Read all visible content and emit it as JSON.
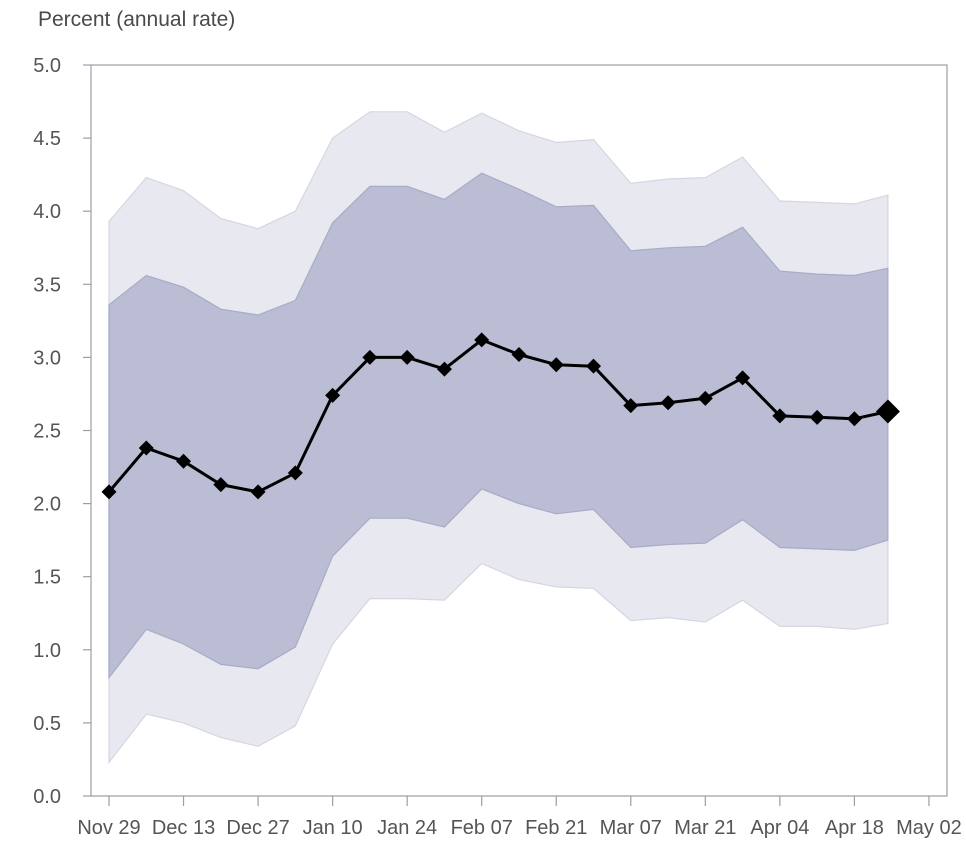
{
  "chart_data": {
    "type": "line",
    "title": "",
    "ylabel": "Percent (annual rate)",
    "xlabel": "",
    "ylim": [
      0.0,
      5.0
    ],
    "yticks": [
      "0.0",
      "0.5",
      "1.0",
      "1.5",
      "2.0",
      "2.5",
      "3.0",
      "3.5",
      "4.0",
      "4.5",
      "5.0"
    ],
    "xticks": [
      "Nov 29",
      "Dec 13",
      "Dec 27",
      "Jan 10",
      "Jan 24",
      "Feb 07",
      "Feb 21",
      "Mar 07",
      "Mar 21",
      "Apr 04",
      "Apr 18",
      "May 02"
    ],
    "x": [
      "Nov 29",
      "Dec 06",
      "Dec 13",
      "Dec 20",
      "Dec 27",
      "Jan 03",
      "Jan 10",
      "Jan 17",
      "Jan 24",
      "Jan 31",
      "Feb 07",
      "Feb 14",
      "Feb 21",
      "Feb 28",
      "Mar 07",
      "Mar 14",
      "Mar 21",
      "Mar 28",
      "Apr 04",
      "Apr 11",
      "Apr 18",
      "Apr 24"
    ],
    "series": [
      {
        "values": [
          2.08,
          2.38,
          2.29,
          2.13,
          2.08,
          2.21,
          2.74,
          3.0,
          3.0,
          2.92,
          3.12,
          3.02,
          2.95,
          2.94,
          2.67,
          2.69,
          2.72,
          2.86,
          2.6,
          2.59,
          2.58,
          2.63
        ]
      }
    ],
    "bands": [
      {
        "lower": [
          0.23,
          0.56,
          0.5,
          0.4,
          0.34,
          0.48,
          1.04,
          1.35,
          1.35,
          1.34,
          1.59,
          1.48,
          1.43,
          1.42,
          1.2,
          1.22,
          1.19,
          1.34,
          1.16,
          1.16,
          1.14,
          1.18
        ],
        "upper": [
          3.93,
          4.23,
          4.14,
          3.95,
          3.88,
          4.0,
          4.5,
          4.68,
          4.68,
          4.54,
          4.67,
          4.55,
          4.47,
          4.49,
          4.19,
          4.22,
          4.23,
          4.37,
          4.07,
          4.06,
          4.05,
          4.11
        ],
        "color": "#e8e8f0",
        "edge": "#d6d6e2"
      },
      {
        "lower": [
          0.81,
          1.14,
          1.04,
          0.9,
          0.87,
          1.02,
          1.64,
          1.9,
          1.9,
          1.84,
          2.1,
          2.0,
          1.93,
          1.96,
          1.7,
          1.72,
          1.73,
          1.89,
          1.7,
          1.69,
          1.68,
          1.75
        ],
        "upper": [
          3.36,
          3.56,
          3.48,
          3.33,
          3.29,
          3.39,
          3.92,
          4.17,
          4.17,
          4.08,
          4.26,
          4.15,
          4.03,
          4.04,
          3.73,
          3.75,
          3.76,
          3.89,
          3.59,
          3.57,
          3.56,
          3.61
        ],
        "color": "#babdd4",
        "edge": "#a8abc6"
      }
    ],
    "grid": false,
    "colors": {
      "line": "#000000",
      "axis": "#9a9fa6",
      "text": "#555555"
    }
  }
}
